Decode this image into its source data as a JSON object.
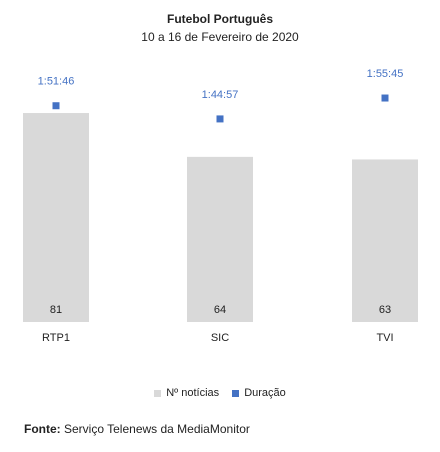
{
  "chart_data": {
    "type": "bar",
    "title": "Futebol Português",
    "subtitle": "10 a 16 de Fevereiro de 2020",
    "categories": [
      "RTP1",
      "SIC",
      "TVI"
    ],
    "series": [
      {
        "name": "Nº notícias",
        "type": "bar",
        "values": [
          81,
          64,
          63
        ],
        "color": "#d9d9d9"
      },
      {
        "name": "Duração",
        "type": "marker",
        "values": [
          "1:51:46",
          "1:44:57",
          "1:55:45"
        ],
        "seconds": [
          6706,
          6297,
          6945
        ],
        "color": "#4472c4"
      }
    ],
    "bar_ylim": [
      0,
      100
    ],
    "duration_ylim_seconds": [
      0,
      8000
    ],
    "legend_position": "bottom",
    "grid": false
  },
  "source": {
    "label": "Fonte:",
    "text": "Serviço Telenews da MediaMonitor"
  }
}
